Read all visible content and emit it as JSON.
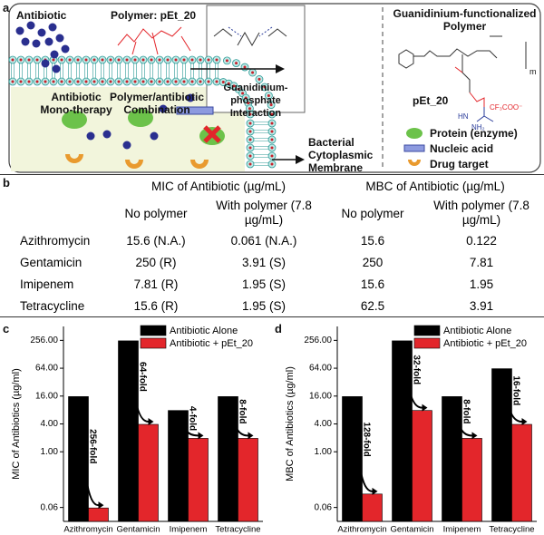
{
  "panel_labels": [
    "a",
    "b",
    "c",
    "d"
  ],
  "panel_a": {
    "antibiotic": "Antibiotic",
    "polymer": "Polymer:  pEt_20",
    "mono": "Antibiotic Mono-therapy",
    "combo": "Polymer/antibiotic Combination",
    "interaction": "Guanidinium-phosphate Interaction",
    "membrane": "Bacterial Cytoplasmic Membrane",
    "right_title": "Guanidinium-functionalized Polymer",
    "polymer_name": "pEt_20",
    "chem_labels": [
      "m",
      "HN",
      "NH₂",
      "CF₃COO⁻"
    ],
    "legend": [
      "Protein (enzyme)",
      "Nucleic acid",
      "Drug target"
    ]
  },
  "table": {
    "groups": [
      "MIC of Antibiotic (µg/mL)",
      "MBC of Antibiotic (µg/mL)"
    ],
    "header": [
      "No polymer",
      "With polymer (7.8 µg/mL)",
      "No polymer",
      "With polymer (7.8 µg/mL)"
    ],
    "rows": [
      [
        "Azithromycin",
        "15.6 (N.A.)",
        "0.061 (N.A.)",
        "15.6",
        "0.122"
      ],
      [
        "Gentamicin",
        "250 (R)",
        "3.91 (S)",
        "250",
        "7.81"
      ],
      [
        "Imipenem",
        "7.81 (R)",
        "1.95 (S)",
        "15.6",
        "1.95"
      ],
      [
        "Tetracycline",
        "15.6 (R)",
        "1.95 (S)",
        "62.5",
        "3.91"
      ]
    ]
  },
  "chart_data": [
    {
      "type": "bar",
      "y_label": "MIC of Antibiotics (µg/ml)",
      "log_scale": true,
      "legend": "upper right",
      "categories": [
        "Azithromycin",
        "Gentamicin",
        "Imipenem",
        "Tetracycline"
      ],
      "series": [
        {
          "name": "Antibiotic Alone",
          "color": "#000000",
          "values": [
            15.6,
            250,
            7.81,
            15.6
          ]
        },
        {
          "name": "Antibiotic + pEt_20",
          "color": "#e3262b",
          "values": [
            0.061,
            3.91,
            1.95,
            1.95
          ]
        }
      ],
      "annotations": [
        "256-fold",
        "64-fold",
        "4-fold",
        "8-fold"
      ],
      "ylim": [
        0.03125,
        512
      ],
      "yticks": [
        {
          "value": 0.0625,
          "label": "0.06"
        },
        {
          "value": 1,
          "label": "1.00"
        },
        {
          "value": 4,
          "label": "4.00"
        },
        {
          "value": 16,
          "label": "16.00"
        },
        {
          "value": 64,
          "label": "64.00"
        },
        {
          "value": 256,
          "label": "256.00"
        }
      ]
    },
    {
      "type": "bar",
      "y_label": "MBC of Antibiotics (µg/ml)",
      "log_scale": true,
      "legend": "upper right",
      "categories": [
        "Azithromycin",
        "Gentamicin",
        "Imipenem",
        "Tetracycline"
      ],
      "series": [
        {
          "name": "Antibiotic Alone",
          "color": "#000000",
          "values": [
            15.6,
            250,
            15.6,
            62.5
          ]
        },
        {
          "name": "Antibiotic + pEt_20",
          "color": "#e3262b",
          "values": [
            0.122,
            7.81,
            1.95,
            3.91
          ]
        }
      ],
      "annotations": [
        "128-fold",
        "32-fold",
        "8-fold",
        "16-fold"
      ],
      "ylim": [
        0.03125,
        512
      ],
      "yticks": [
        {
          "value": 0.0625,
          "label": "0.06"
        },
        {
          "value": 1,
          "label": "1.00"
        },
        {
          "value": 4,
          "label": "4.00"
        },
        {
          "value": 16,
          "label": "16.00"
        },
        {
          "value": 64,
          "label": "64.00"
        },
        {
          "value": 256,
          "label": "256.00"
        }
      ]
    }
  ]
}
